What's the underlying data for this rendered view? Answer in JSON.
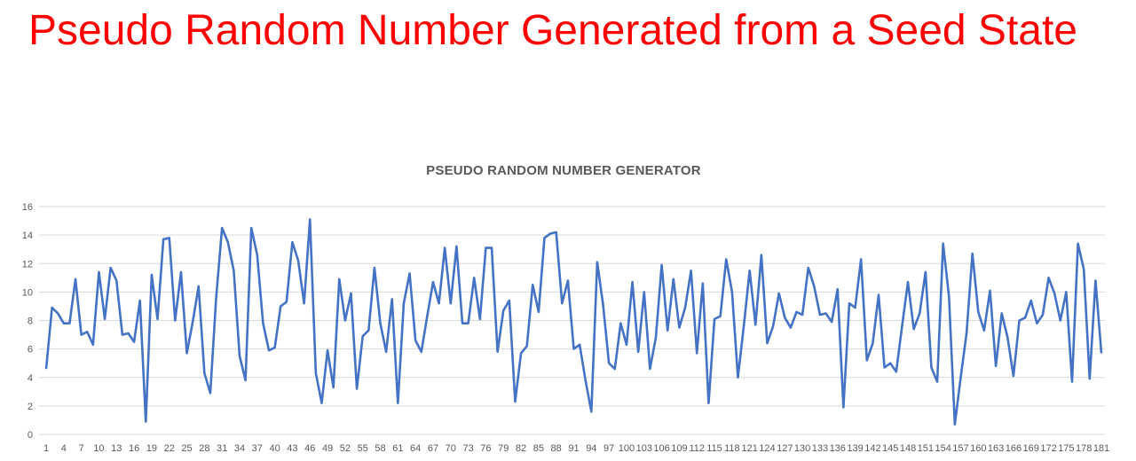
{
  "slide": {
    "title": "Pseudo Random Number Generated from a Seed State"
  },
  "colors": {
    "title": "#ff0000",
    "series": "#4472c4",
    "gridline": "#d9d9d9",
    "axis_text": "#595959"
  },
  "chart_data": {
    "type": "line",
    "title": "PSEUDO RANDOM NUMBER GENERATOR",
    "xlabel": "",
    "ylabel": "",
    "ylim": [
      0,
      16
    ],
    "yticks": [
      0,
      2,
      4,
      6,
      8,
      10,
      12,
      14,
      16
    ],
    "xtick_labels": [
      "1",
      "4",
      "7",
      "10",
      "13",
      "16",
      "19",
      "22",
      "25",
      "28",
      "31",
      "34",
      "37",
      "40",
      "43",
      "46",
      "49",
      "52",
      "55",
      "58",
      "61",
      "64",
      "67",
      "70",
      "73",
      "76",
      "79",
      "82",
      "85",
      "88",
      "91",
      "94",
      "97",
      "100",
      "103",
      "106",
      "109",
      "112",
      "115",
      "118",
      "121",
      "124",
      "127",
      "130",
      "133",
      "136",
      "139",
      "142",
      "145",
      "148",
      "151",
      "154",
      "157",
      "160",
      "163",
      "166",
      "169",
      "172",
      "175",
      "178",
      "181"
    ],
    "grid": true,
    "legend": "none",
    "x": [
      1,
      2,
      3,
      4,
      5,
      6,
      7,
      8,
      9,
      10,
      11,
      12,
      13,
      14,
      15,
      16,
      17,
      18,
      19,
      20,
      21,
      22,
      23,
      24,
      25,
      26,
      27,
      28,
      29,
      30,
      31,
      32,
      33,
      34,
      35,
      36,
      37,
      38,
      39,
      40,
      41,
      42,
      43,
      44,
      45,
      46,
      47,
      48,
      49,
      50,
      51,
      52,
      53,
      54,
      55,
      56,
      57,
      58,
      59,
      60,
      61,
      62,
      63,
      64,
      65,
      66,
      67,
      68,
      69,
      70,
      71,
      72,
      73,
      74,
      75,
      76,
      77,
      78,
      79,
      80,
      81,
      82,
      83,
      84,
      85,
      86,
      87,
      88,
      89,
      90,
      91,
      92,
      93,
      94,
      95,
      96,
      97,
      98,
      99,
      100,
      101,
      102,
      103,
      104,
      105,
      106,
      107,
      108,
      109,
      110,
      111,
      112,
      113,
      114,
      115,
      116,
      117,
      118,
      119,
      120,
      121,
      122,
      123,
      124,
      125,
      126,
      127,
      128,
      129,
      130,
      131,
      132,
      133,
      134,
      135,
      136,
      137,
      138,
      139,
      140,
      141,
      142,
      143,
      144,
      145,
      146,
      147,
      148,
      149,
      150,
      151,
      152,
      153,
      154,
      155,
      156,
      157,
      158,
      159,
      160,
      161,
      162,
      163,
      164,
      165,
      166,
      167,
      168,
      169,
      170,
      171,
      172,
      173,
      174,
      175,
      176,
      177,
      178,
      179,
      180,
      181
    ],
    "series": [
      {
        "values": [
          4.6,
          8.9,
          8.5,
          7.8,
          7.8,
          10.9,
          7.0,
          7.2,
          6.3,
          11.4,
          8.1,
          11.7,
          10.8,
          7.0,
          7.1,
          6.5,
          9.4,
          0.9,
          11.2,
          8.1,
          13.7,
          13.8,
          8.0,
          11.4,
          5.7,
          7.9,
          10.4,
          4.3,
          2.9,
          9.6,
          14.5,
          13.5,
          11.5,
          5.5,
          3.8,
          14.5,
          12.6,
          7.8,
          5.9,
          6.1,
          9.0,
          9.3,
          13.5,
          12.2,
          9.2,
          15.1,
          4.3,
          2.2,
          5.9,
          3.3,
          10.9,
          8.0,
          9.9,
          3.2,
          6.9,
          7.3,
          11.7,
          7.8,
          5.8,
          9.5,
          2.2,
          9.2,
          11.3,
          6.6,
          5.8,
          8.3,
          10.7,
          9.2,
          13.1,
          9.2,
          13.2,
          7.8,
          7.8,
          11.0,
          8.1,
          13.1,
          13.1,
          5.8,
          8.7,
          9.4,
          2.3,
          5.7,
          6.2,
          10.5,
          8.6,
          13.8,
          14.1,
          14.2,
          9.2,
          10.8,
          6.0,
          6.3,
          3.8,
          1.6,
          12.1,
          9.1,
          5.0,
          4.6,
          7.8,
          6.3,
          10.7,
          5.8,
          10.0,
          4.6,
          6.8,
          11.9,
          7.3,
          10.9,
          7.5,
          8.9,
          11.5,
          5.7,
          10.6,
          2.2,
          8.1,
          8.3,
          12.3,
          10.0,
          4.0,
          7.6,
          11.5,
          7.7,
          12.6,
          6.4,
          7.6,
          9.9,
          8.2,
          7.5,
          8.6,
          8.4,
          11.7,
          10.4,
          8.4,
          8.5,
          7.9,
          10.2,
          1.9,
          9.2,
          8.9,
          12.3,
          5.2,
          6.4,
          9.8,
          4.7,
          5.0,
          4.4,
          7.6,
          10.7,
          7.4,
          8.5,
          11.4,
          4.7,
          3.7,
          13.4,
          9.7,
          0.7,
          4.0,
          7.1,
          12.7,
          8.6,
          7.3,
          10.1,
          4.8,
          8.5,
          6.8,
          4.1,
          8.0,
          8.2,
          9.4,
          7.8,
          8.4,
          11.0,
          9.9,
          8.0,
          10.0,
          3.7,
          13.4,
          11.6,
          3.9,
          10.8,
          5.7
        ]
      }
    ]
  }
}
